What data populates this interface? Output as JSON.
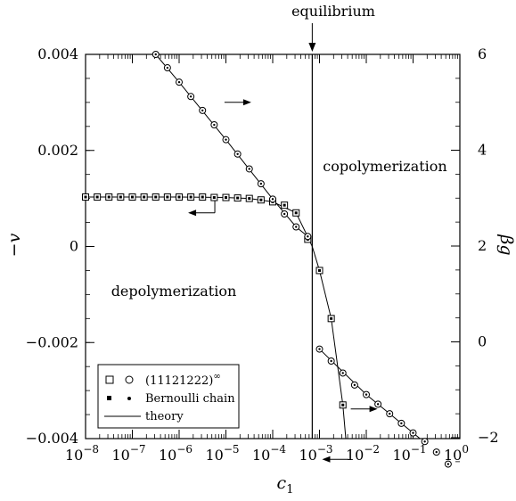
{
  "chart_data": {
    "type": "line",
    "annotations": {
      "equilibrium": "equilibrium",
      "copolymerization": "copolymerization",
      "depolymerization": "depolymerization"
    },
    "x_axis": {
      "label": "c",
      "label_subscript": "1",
      "scale": "log",
      "range": [
        1e-08,
        1
      ],
      "ticks": [
        {
          "base": "10",
          "exp": "−8"
        },
        {
          "base": "10",
          "exp": "−7"
        },
        {
          "base": "10",
          "exp": "−6"
        },
        {
          "base": "10",
          "exp": "−5"
        },
        {
          "base": "10",
          "exp": "−4"
        },
        {
          "base": "10",
          "exp": "−3"
        },
        {
          "base": "10",
          "exp": "−2"
        },
        {
          "base": "10",
          "exp": "−1"
        },
        {
          "base": "10",
          "exp": "0"
        }
      ]
    },
    "y_left_axis": {
      "label": "−v",
      "range": [
        -0.004,
        0.004
      ],
      "tick_labels": [
        "0.004",
        "0.002",
        "0",
        "−0.002",
        "−0.004"
      ],
      "tick_values": [
        0.004,
        0.002,
        0,
        -0.002,
        -0.004
      ]
    },
    "y_right_axis": {
      "label": "βg",
      "range": [
        -2.8,
        6
      ],
      "tick_labels": [
        "6",
        "4",
        "2",
        "0",
        "−2"
      ],
      "tick_values": [
        6,
        4,
        2,
        0,
        -2
      ]
    },
    "equilibrium_c1": 0.0007,
    "legend": {
      "position": "bottom-left",
      "entries": [
        {
          "symbol": "□ ○",
          "label": "(11121222)",
          "label_sup": "∞"
        },
        {
          "symbol": "▪ •",
          "label": "Bernoulli chain"
        },
        {
          "symbol": "line",
          "label": "theory"
        }
      ]
    },
    "series": [
      {
        "axis": "left",
        "marker": "open-square",
        "points": [
          [
            1e-08,
            0.00103
          ],
          [
            1.78e-08,
            0.00103
          ],
          [
            3.16e-08,
            0.00103
          ],
          [
            5.62e-08,
            0.00103
          ],
          [
            1e-07,
            0.00103
          ],
          [
            1.78e-07,
            0.00103
          ],
          [
            3.16e-07,
            0.00103
          ],
          [
            5.62e-07,
            0.00103
          ],
          [
            1e-06,
            0.00103
          ],
          [
            1.78e-06,
            0.00103
          ],
          [
            3.16e-06,
            0.00103
          ],
          [
            5.62e-06,
            0.00102
          ],
          [
            1e-05,
            0.00102
          ],
          [
            1.78e-05,
            0.00101
          ],
          [
            3.16e-05,
            0.001
          ],
          [
            5.62e-05,
            0.00097
          ],
          [
            0.0001,
            0.00093
          ],
          [
            0.000178,
            0.00086
          ],
          [
            0.000316,
            0.0007
          ],
          [
            0.000562,
            0.00015
          ],
          [
            0.001,
            -0.0005
          ],
          [
            0.00178,
            -0.0015
          ],
          [
            0.00316,
            -0.0033
          ]
        ]
      },
      {
        "axis": "right",
        "marker": "open-circle",
        "points": [
          [
            3.16e-07,
            6.0
          ],
          [
            5.62e-07,
            5.72
          ],
          [
            1e-06,
            5.42
          ],
          [
            1.78e-06,
            5.12
          ],
          [
            3.16e-06,
            4.83
          ],
          [
            5.62e-06,
            4.53
          ],
          [
            1e-05,
            4.22
          ],
          [
            1.78e-05,
            3.92
          ],
          [
            3.16e-05,
            3.61
          ],
          [
            5.62e-05,
            3.3
          ],
          [
            0.0001,
            2.98
          ],
          [
            0.000178,
            2.67
          ],
          [
            0.000316,
            2.4
          ],
          [
            0.000562,
            2.2
          ],
          [
            0.001,
            -0.15
          ],
          [
            0.00178,
            -0.4
          ],
          [
            0.00316,
            -0.65
          ],
          [
            0.00562,
            -0.9
          ],
          [
            0.01,
            -1.1
          ],
          [
            0.0178,
            -1.3
          ],
          [
            0.0316,
            -1.5
          ],
          [
            0.0562,
            -1.7
          ],
          [
            0.1,
            -1.9
          ],
          [
            0.178,
            -2.08
          ],
          [
            0.316,
            -2.3
          ],
          [
            0.562,
            -2.55
          ]
        ]
      }
    ],
    "theory_curves": [
      {
        "axis": "left",
        "points": [
          [
            1e-08,
            0.00103
          ],
          [
            1e-07,
            0.00103
          ],
          [
            1e-06,
            0.00103
          ],
          [
            1e-05,
            0.00102
          ],
          [
            3.16e-05,
            0.001
          ],
          [
            0.0001,
            0.00093
          ],
          [
            0.000316,
            0.0007
          ],
          [
            0.000562,
            0.0002
          ],
          [
            0.0007,
            0.0
          ],
          [
            0.001,
            -0.0005
          ],
          [
            0.00178,
            -0.0015
          ],
          [
            0.00316,
            -0.0033
          ],
          [
            0.00365,
            -0.004
          ]
        ]
      },
      {
        "axis": "right",
        "points": [
          [
            3.16e-07,
            6.0
          ],
          [
            1e-06,
            5.42
          ],
          [
            1e-05,
            4.22
          ],
          [
            0.0001,
            2.98
          ],
          [
            0.000316,
            2.4
          ],
          [
            0.000562,
            2.2
          ]
        ]
      },
      {
        "axis": "right",
        "points": [
          [
            0.001,
            -0.15
          ],
          [
            0.01,
            -1.1
          ],
          [
            0.1,
            -1.9
          ],
          [
            0.316,
            -2.3
          ],
          [
            0.7,
            -2.8
          ]
        ]
      }
    ],
    "arrows": [
      {
        "x": 1.8e-05,
        "axis": "right",
        "y": 5.0,
        "dir": "right"
      },
      {
        "x": 3e-06,
        "axis": "left",
        "y": 0.0007,
        "dir": "left"
      },
      {
        "x": 0.009,
        "axis": "right",
        "y": -1.4,
        "dir": "right"
      },
      {
        "x": 0.0022,
        "axis": "right",
        "y": -2.45,
        "dir": "left"
      }
    ]
  }
}
